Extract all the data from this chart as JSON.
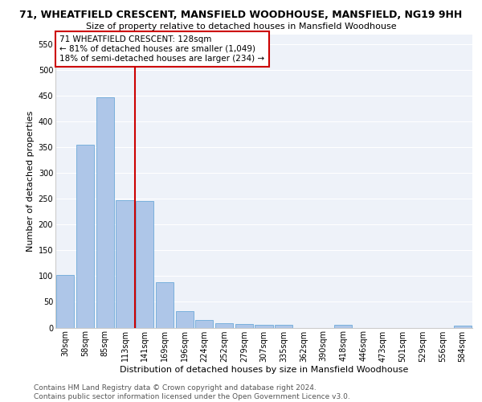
{
  "title1": "71, WHEATFIELD CRESCENT, MANSFIELD WOODHOUSE, MANSFIELD, NG19 9HH",
  "title2": "Size of property relative to detached houses in Mansfield Woodhouse",
  "xlabel": "Distribution of detached houses by size in Mansfield Woodhouse",
  "ylabel": "Number of detached properties",
  "footer1": "Contains HM Land Registry data © Crown copyright and database right 2024.",
  "footer2": "Contains public sector information licensed under the Open Government Licence v3.0.",
  "categories": [
    "30sqm",
    "58sqm",
    "85sqm",
    "113sqm",
    "141sqm",
    "169sqm",
    "196sqm",
    "224sqm",
    "252sqm",
    "279sqm",
    "307sqm",
    "335sqm",
    "362sqm",
    "390sqm",
    "418sqm",
    "446sqm",
    "473sqm",
    "501sqm",
    "529sqm",
    "556sqm",
    "584sqm"
  ],
  "values": [
    103,
    355,
    447,
    247,
    246,
    89,
    32,
    15,
    9,
    7,
    6,
    5,
    0,
    0,
    6,
    0,
    0,
    0,
    0,
    0,
    4
  ],
  "bar_color": "#aec6e8",
  "bar_edge_color": "#5a9fd4",
  "vline_x": 3.5,
  "vline_color": "#cc0000",
  "annotation_line1": "71 WHEATFIELD CRESCENT: 128sqm",
  "annotation_line2": "← 81% of detached houses are smaller (1,049)",
  "annotation_line3": "18% of semi-detached houses are larger (234) →",
  "annotation_box_color": "#cc0000",
  "ylim": [
    0,
    570
  ],
  "yticks": [
    0,
    50,
    100,
    150,
    200,
    250,
    300,
    350,
    400,
    450,
    500,
    550
  ],
  "background_color": "#eef2f9",
  "grid_color": "#ffffff",
  "title1_fontsize": 9,
  "title2_fontsize": 8,
  "xlabel_fontsize": 8,
  "ylabel_fontsize": 8,
  "tick_fontsize": 7,
  "annotation_fontsize": 7.5,
  "footer_fontsize": 6.5
}
